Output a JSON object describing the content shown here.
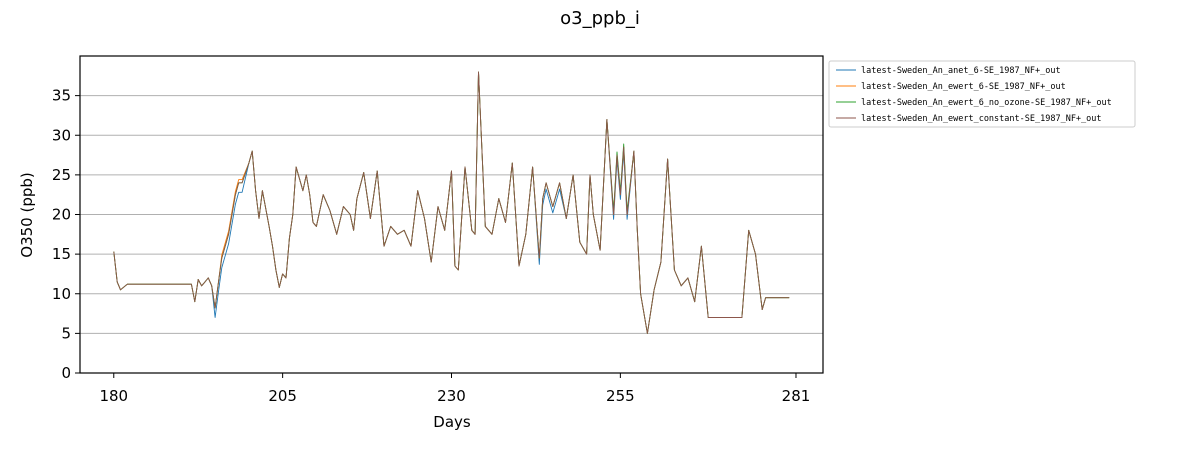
{
  "chart_data": {
    "type": "line",
    "title": "o3_ppb_i",
    "xlabel": "Days",
    "ylabel": "O350 (ppb)",
    "xlim": [
      175,
      285
    ],
    "ylim": [
      0,
      40
    ],
    "xticks": [
      180,
      205,
      230,
      255,
      281
    ],
    "yticks": [
      0,
      5,
      10,
      15,
      20,
      25,
      30,
      35
    ],
    "grid": "y",
    "legend_position": "outside-right-top",
    "colors": [
      "#1f77b4",
      "#ff7f0e",
      "#2ca02c",
      "#8c564b"
    ],
    "series": [
      {
        "name": "latest-Sweden_An_anet_6-SE_1987_NF+_out"
      },
      {
        "name": "latest-Sweden_An_ewert_6-SE_1987_NF+_out"
      },
      {
        "name": "latest-Sweden_An_ewert_6_no_ozone-SE_1987_NF+_out"
      },
      {
        "name": "latest-Sweden_An_ewert_constant-SE_1987_NF+_out"
      }
    ],
    "x": [
      180,
      180.5,
      181,
      182,
      185,
      190,
      191.5,
      192,
      192.5,
      193,
      193.5,
      194,
      194.5,
      195,
      195.5,
      196,
      197,
      198,
      198.5,
      199,
      200,
      200.5,
      201,
      201.5,
      202,
      203,
      203.5,
      204,
      204.5,
      205,
      205.5,
      206,
      206.5,
      207,
      208,
      208.5,
      209,
      209.5,
      210,
      211,
      212,
      213,
      214,
      215,
      215.5,
      216,
      217,
      218,
      219,
      220,
      221,
      222,
      223,
      224,
      225,
      226,
      227,
      228,
      229,
      230,
      230.5,
      231,
      232,
      233,
      233.5,
      234,
      235,
      236,
      237,
      238,
      239,
      240,
      241,
      242,
      243,
      243.5,
      244,
      245,
      246,
      247,
      248,
      249,
      250,
      250.5,
      251,
      252,
      253,
      254,
      254.5,
      255,
      255.5,
      256,
      257,
      257.5,
      258,
      259,
      260,
      261,
      262,
      263,
      264,
      265,
      266,
      267,
      268,
      269,
      270,
      271,
      272,
      273,
      274,
      275,
      276,
      276.5,
      277,
      277.5,
      278,
      279,
      280,
      281
    ],
    "values": {
      "base": [
        15.3,
        11.5,
        10.5,
        11.2,
        11.2,
        11.2,
        11.2,
        9.0,
        11.8,
        11.0,
        11.5,
        12.0,
        11.0,
        8.2,
        11.5,
        14.5,
        17.5,
        22.5,
        24.0,
        24.0,
        26.5,
        28.0,
        23.0,
        19.5,
        23.0,
        18.5,
        16.0,
        13.0,
        10.8,
        12.5,
        12.0,
        17.0,
        20.0,
        26.0,
        23.0,
        25.0,
        22.5,
        19.0,
        18.5,
        22.5,
        20.5,
        17.5,
        21.0,
        20.0,
        18.0,
        22.0,
        25.3,
        19.5,
        25.5,
        16.0,
        18.5,
        17.5,
        18.0,
        16.0,
        23.0,
        19.5,
        14.0,
        21.0,
        18.0,
        25.5,
        13.5,
        13.0,
        26.0,
        18.0,
        17.5,
        38.0,
        18.5,
        17.5,
        22.0,
        19.0,
        26.5,
        13.5,
        17.5,
        26.0,
        14.5,
        22.0,
        24.0,
        21.0,
        24.0,
        19.5,
        25.0,
        16.5,
        15.0,
        25.0,
        20.0,
        15.5,
        32.0,
        20.0,
        27.5,
        22.5,
        28.5,
        20.0,
        28.0,
        18.0,
        10.0,
        5.0,
        10.5,
        14.0,
        27.0,
        13.0,
        11.0,
        12.0,
        9.0,
        16.0,
        7.0,
        7.0,
        7.0,
        7.0,
        7.0,
        7.0,
        18.0,
        15.0,
        8.0,
        9.5,
        9.5,
        9.5,
        9.5,
        9.5,
        9.5
      ]
    }
  }
}
